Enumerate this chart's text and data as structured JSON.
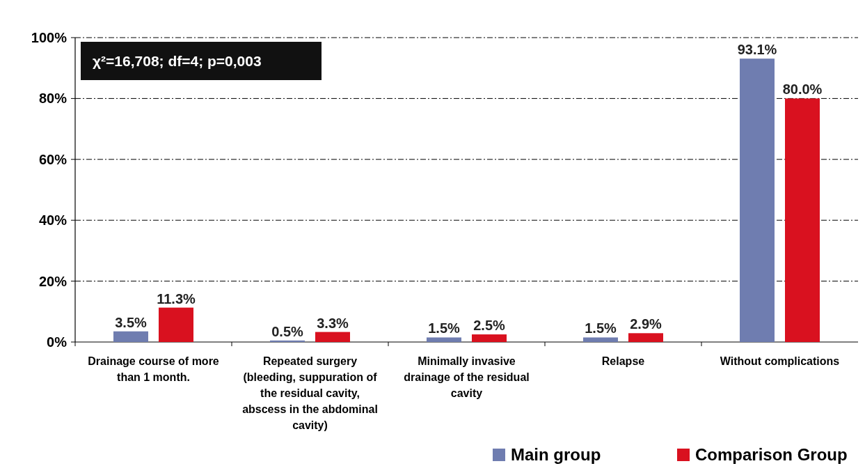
{
  "chart_data": {
    "type": "bar",
    "categories": [
      "Drainage course of more than 1 month.",
      "Repeated surgery (bleeding, suppuration of the residual cavity, abscess in the abdominal cavity)",
      "Minimally invasive drainage of the residual cavity",
      "Relapse",
      "Without complications"
    ],
    "series": [
      {
        "name": "Main group",
        "color": "#6f7db0",
        "values": [
          3.5,
          0.5,
          1.5,
          1.5,
          93.1
        ],
        "value_labels": [
          "3.5%",
          "0.5%",
          "1.5%",
          "1.5%",
          "93.1%"
        ]
      },
      {
        "name": "Comparison Group",
        "color": "#d9111f",
        "values": [
          11.3,
          3.3,
          2.5,
          2.9,
          80.0
        ],
        "value_labels": [
          "11.3%",
          "3.3%",
          "2.5%",
          "2.9%",
          "80.0%"
        ]
      }
    ],
    "ylim": [
      0,
      100
    ],
    "yticks": [
      {
        "value": 0,
        "label": "0%"
      },
      {
        "value": 20,
        "label": "20%"
      },
      {
        "value": 40,
        "label": "40%"
      },
      {
        "value": 60,
        "label": "60%"
      },
      {
        "value": 80,
        "label": "80%"
      },
      {
        "value": 100,
        "label": "100%"
      }
    ],
    "grid": "y",
    "legend": "bottom right",
    "annotations": [
      "χ²=16,708; df=4; p=0,003"
    ]
  }
}
